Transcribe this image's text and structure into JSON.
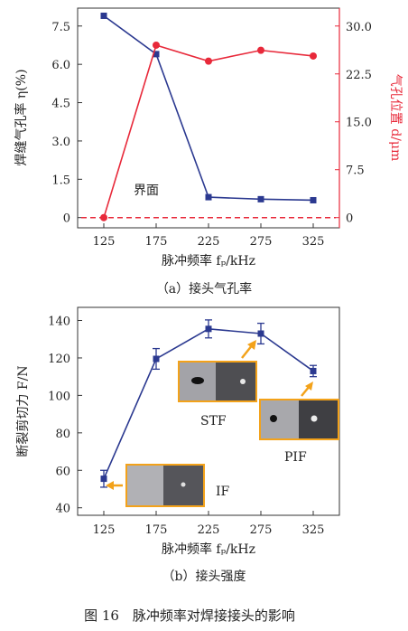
{
  "figure_caption": "图 16　脉冲频率对焊接接头的影响",
  "colors": {
    "blue": "#2b3990",
    "red": "#e8293a",
    "axis": "#333333",
    "orange": "#f3a21a"
  },
  "chart_data": [
    {
      "type": "line",
      "caption": "（a）接头气孔率",
      "xlabel": "脉冲频率 fₚ/kHz",
      "ylabel_left": "焊缝气孔率 η(%)",
      "ylabel_right": "气孔位置 d/μm",
      "x": [
        125,
        175,
        225,
        275,
        325
      ],
      "x_ticks": [
        "125",
        "175",
        "225",
        "275",
        "325"
      ],
      "xlim": [
        100,
        350
      ],
      "ylim_left": [
        -0.4,
        8.2
      ],
      "ylim_right": [
        -1.6,
        32.8
      ],
      "y_ticks_left": [
        "0",
        "1.5",
        "3.0",
        "4.5",
        "6.0",
        "7.5"
      ],
      "y_ticks_right": [
        "0",
        "7.5",
        "15.0",
        "22.5",
        "30.0"
      ],
      "series": [
        {
          "name": "焊缝气孔率",
          "axis": "left",
          "color": "#2b3990",
          "marker": "square",
          "values": [
            7.9,
            6.4,
            0.8,
            0.72,
            0.68
          ]
        },
        {
          "name": "气孔位置",
          "axis": "right",
          "color": "#e8293a",
          "marker": "circle",
          "values": [
            0,
            27,
            24.5,
            26.2,
            25.3
          ]
        }
      ],
      "reference_line": {
        "value": 0,
        "axis": "right",
        "label": "界面",
        "color": "#e8293a",
        "style": "dashed"
      }
    },
    {
      "type": "line",
      "caption": "（b）接头强度",
      "xlabel": "脉冲频率 fₚ/kHz",
      "ylabel": "断裂剪切力 F/N",
      "x": [
        125,
        175,
        225,
        275,
        325
      ],
      "x_ticks": [
        "125",
        "175",
        "225",
        "275",
        "325"
      ],
      "xlim": [
        100,
        350
      ],
      "ylim": [
        36,
        147
      ],
      "y_ticks": [
        "40",
        "60",
        "80",
        "100",
        "120",
        "140"
      ],
      "series": [
        {
          "name": "断裂剪切力",
          "color": "#2b3990",
          "marker": "square",
          "values": [
            55.5,
            119.5,
            135.5,
            133,
            113
          ],
          "errors": [
            4.5,
            5.5,
            4.8,
            5.5,
            3
          ]
        }
      ],
      "annotations": [
        {
          "label": "IF",
          "points_to": 125
        },
        {
          "label": "STF",
          "points_to": 275
        },
        {
          "label": "PIF",
          "points_to": 325
        }
      ]
    }
  ]
}
